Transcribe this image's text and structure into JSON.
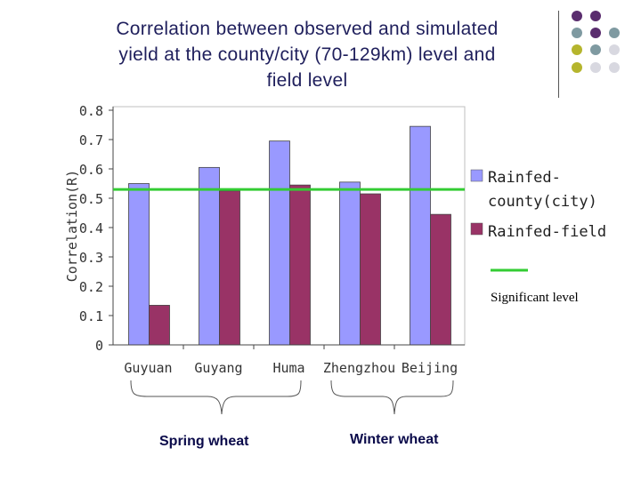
{
  "title_lines": [
    "Correlation between observed and simulated",
    "yield at the county/city (70-129km) level and",
    "field level"
  ],
  "chart_data": {
    "type": "bar",
    "categories": [
      "Guyuan",
      "Guyang",
      "Huma",
      "Zhengzhou",
      "Beijing"
    ],
    "series": [
      {
        "name": "Rainfed-county(city)",
        "color": "#9999ff",
        "values": [
          0.55,
          0.605,
          0.695,
          0.555,
          0.745
        ]
      },
      {
        "name": "Rainfed-field",
        "color": "#993366",
        "values": [
          0.135,
          0.525,
          0.545,
          0.515,
          0.445
        ]
      }
    ],
    "legend_lines": [
      [
        "Rainfed-",
        "county(city)"
      ],
      [
        "Rainfed-field"
      ]
    ],
    "ylabel": "Correlation(R)",
    "ylim": [
      0,
      0.8
    ],
    "yticks": [
      0,
      0.1,
      0.2,
      0.3,
      0.4,
      0.5,
      0.6,
      0.7,
      0.8
    ],
    "ytick_labels": [
      "0",
      "0.1",
      "0.2",
      "0.3",
      "0.4",
      "0.5",
      "0.6",
      "0.7",
      "0.8"
    ],
    "significant_level": 0.53,
    "significant_color": "#33cc33",
    "significant_label": "Significant level"
  },
  "groups": [
    {
      "label": "Spring wheat",
      "categories": [
        "Guyuan",
        "Guyang",
        "Huma"
      ]
    },
    {
      "label": "Winter wheat",
      "categories": [
        "Zhengzhou",
        "Beijing"
      ]
    }
  ],
  "decoration_colors": [
    "#5a2d6e",
    "#5a2d6e",
    "#7f9aa1",
    "#5a2d6e",
    "#7f9aa1",
    "#b5b52d",
    "#7f9aa1",
    "#d8d8e0",
    "#b5b52d",
    "#d8d8e0",
    "#d8d8e0"
  ]
}
